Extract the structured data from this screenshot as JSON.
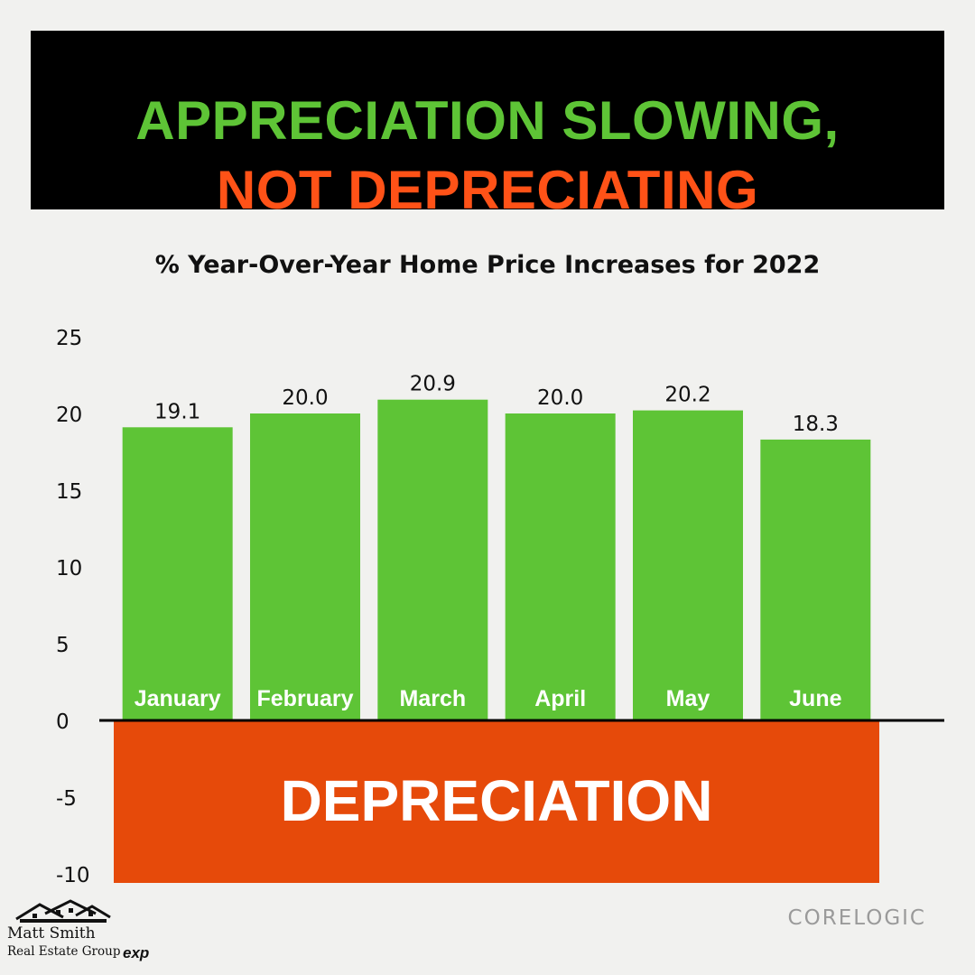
{
  "header": {
    "line1": "APPRECIATION SLOWING,",
    "line2": "NOT DEPRECIATING"
  },
  "source_label": "CORELOGIC",
  "branding": {
    "name": "Matt Smith",
    "group": "Real Estate Group",
    "partner": "exp"
  },
  "colors": {
    "header_bg": "#000000",
    "headline_green": "#5ec436",
    "headline_orange": "#ff5217",
    "bar_green": "#5ec436",
    "depreciation_orange": "#e64a0a",
    "background": "#f1f1ef"
  },
  "chart_data": {
    "type": "bar",
    "title": "% Year-Over-Year Home Price Increases for 2022",
    "categories": [
      "January",
      "February",
      "March",
      "April",
      "May",
      "June"
    ],
    "values": [
      19.1,
      20.0,
      20.9,
      20.0,
      20.2,
      18.3
    ],
    "data_labels": [
      "19.1",
      "20.0",
      "20.9",
      "20.0",
      "20.2",
      "18.3"
    ],
    "ylim": [
      -10,
      25
    ],
    "yticks": [
      25,
      20,
      15,
      10,
      5,
      0,
      -5,
      -10
    ],
    "xlabel": "",
    "ylabel": "",
    "grid": false,
    "negative_region": {
      "range": [
        -10,
        0
      ],
      "label": "DEPRECIATION"
    }
  }
}
